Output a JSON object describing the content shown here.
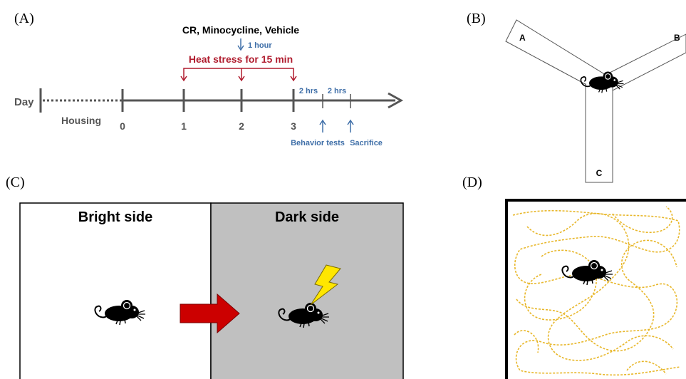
{
  "panels": {
    "a": "(A)",
    "b": "(B)",
    "c": "(C)",
    "d": "(D)"
  },
  "timeline": {
    "day_label": "Day",
    "housing_label": "Housing",
    "ticks": [
      "0",
      "1",
      "2",
      "3"
    ],
    "treatment_label": "CR, Minocycline, Vehicle",
    "one_hour_label": "1 hour",
    "heat_stress_label": "Heat stress for 15 min",
    "interval_1": "2 hrs",
    "interval_2": "2 hrs",
    "behavior_tests_label": "Behavior tests",
    "sacrifice_label": "Sacrifice"
  },
  "ymaze": {
    "arm_a": "A",
    "arm_b": "B",
    "arm_c": "C"
  },
  "passive_avoidance": {
    "bright_label": "Bright side",
    "dark_label": "Dark side"
  },
  "colors": {
    "timeline_gray": "#555555",
    "blue_text": "#3f6fa8",
    "heat_red": "#b01c2e",
    "arrow_red": "#cc0000",
    "lightning_yellow": "#ffe600",
    "dark_gray_bg": "#c0c0c0",
    "trace_yellow": "#e8b72a"
  }
}
